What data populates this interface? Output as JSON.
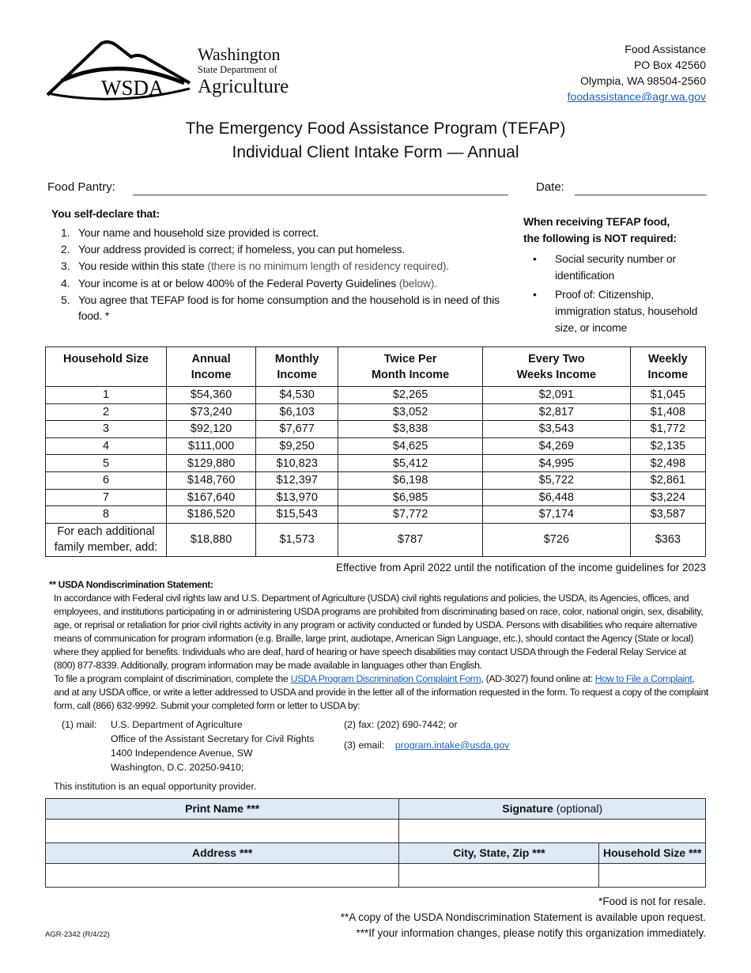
{
  "logo": {
    "abbr": "WSDA",
    "line1": "Washington",
    "line2": "State Department of",
    "line3": "Agriculture"
  },
  "address": {
    "dept": "Food Assistance",
    "box": "PO Box 42560",
    "city": "Olympia, WA  98504-2560",
    "email": "foodassistance@agr.wa.gov"
  },
  "title": {
    "line1": "The Emergency Food Assistance Program (TEFAP)",
    "line2": "Individual Client Intake Form — Annual"
  },
  "fields": {
    "pantry_label": "Food Pantry:",
    "pantry_value": "",
    "date_label": "Date:",
    "date_value": ""
  },
  "declare": {
    "heading": "You self-declare that:",
    "items": [
      {
        "n": "1.",
        "text": "Your name and household size provided is correct.",
        "note": ""
      },
      {
        "n": "2.",
        "text": "Your address provided is correct; if homeless, you can put homeless.",
        "note": ""
      },
      {
        "n": "3.",
        "text": "You reside within this state",
        "note": "(there is no minimum length of residency required)."
      },
      {
        "n": "4.",
        "text": "Your income is at or below 400% of the Federal Poverty Guidelines",
        "note": "(below)."
      },
      {
        "n": "5.",
        "text": "You agree that TEFAP food is for home consumption and the household is in need of this food. *",
        "note": ""
      }
    ]
  },
  "not_required": {
    "heading_1": "When receiving TEFAP food,",
    "heading_2": "the following is NOT required:",
    "items": [
      "Social security number or identification",
      "Proof of: Citizenship, immigration status, household size, or income"
    ]
  },
  "income_table": {
    "headers": [
      [
        "Household Size",
        ""
      ],
      [
        "Annual",
        "Income"
      ],
      [
        "Monthly",
        "Income"
      ],
      [
        "Twice Per",
        "Month Income"
      ],
      [
        "Every Two",
        "Weeks Income"
      ],
      [
        "Weekly",
        "Income"
      ]
    ],
    "rows": [
      [
        "1",
        "$54,360",
        "$4,530",
        "$2,265",
        "$2,091",
        "$1,045"
      ],
      [
        "2",
        "$73,240",
        "$6,103",
        "$3,052",
        "$2,817",
        "$1,408"
      ],
      [
        "3",
        "$92,120",
        "$7,677",
        "$3,838",
        "$3,543",
        "$1,772"
      ],
      [
        "4",
        "$111,000",
        "$9,250",
        "$4,625",
        "$4,269",
        "$2,135"
      ],
      [
        "5",
        "$129,880",
        "$10,823",
        "$5,412",
        "$4,995",
        "$2,498"
      ],
      [
        "6",
        "$148,760",
        "$12,397",
        "$6,198",
        "$5,722",
        "$2,861"
      ],
      [
        "7",
        "$167,640",
        "$13,970",
        "$6,985",
        "$6,448",
        "$3,224"
      ],
      [
        "8",
        "$186,520",
        "$15,543",
        "$7,772",
        "$7,174",
        "$3,587"
      ],
      [
        "For each additional family member, add:",
        "$18,880",
        "$1,573",
        "$787",
        "$726",
        "$363"
      ]
    ]
  },
  "effective": "Effective from April 2022 until the notification of the income guidelines for 2023",
  "nondiscrimination": {
    "heading": "** USDA Nondiscrimination Statement:",
    "para1": "In accordance with Federal civil rights law and U.S. Department of Agriculture (USDA) civil rights regulations and policies, the USDA, its Agencies, offices, and employees, and institutions participating in or administering USDA programs are prohibited from discriminating based on race, color, national origin, sex, disability, age, or reprisal or retaliation for prior civil rights activity in any program or activity conducted or funded by USDA. Persons with disabilities who require alternative means of communication for program information (e.g. Braille, large print, audiotape, American Sign Language, etc.), should contact the Agency (State or local) where they applied for benefits.  Individuals who are deaf, hard of hearing or have speech disabilities may contact USDA through the Federal Relay Service at (800) 877-8339.  Additionally, program information may be made available in languages other than English.",
    "p2_a": "To file a program complaint of discrimination, complete the ",
    "p2_link1": "USDA Program Discrimination Complaint Form",
    "p2_b": ", (AD-3027) found online at: ",
    "p2_link2": "How to File a Complaint",
    "p2_c": ", and at any USDA office, or write a letter addressed to USDA and provide in the letter all of the information requested in the form.  To request a copy of the complaint form, call (866) 632-9992.  Submit your completed form or letter to USDA by:",
    "mail_label": "(1) mail:",
    "mail_lines": [
      "U.S. Department of Agriculture",
      "Office of the Assistant Secretary for Civil Rights",
      "1400 Independence Avenue, SW",
      "Washington, D.C.  20250-9410;"
    ],
    "fax": "(2) fax:   (202) 690-7442; or",
    "email_label": "(3) email:",
    "email": "program.intake@usda.gov",
    "equal": "This institution is an equal opportunity provider."
  },
  "signature_table": {
    "print_name": "Print Name ***",
    "signature": "Signature",
    "signature_note": "(optional)",
    "address": "Address ***",
    "city": "City, State, Zip ***",
    "household": "Household Size ***"
  },
  "footnotes": [
    "*Food is not for resale.",
    "**A copy of the USDA Nondiscrimination Statement is available upon request.",
    "***If your information changes, please notify this organization immediately."
  ],
  "form_number": "AGR-2342 (R/4/22)"
}
